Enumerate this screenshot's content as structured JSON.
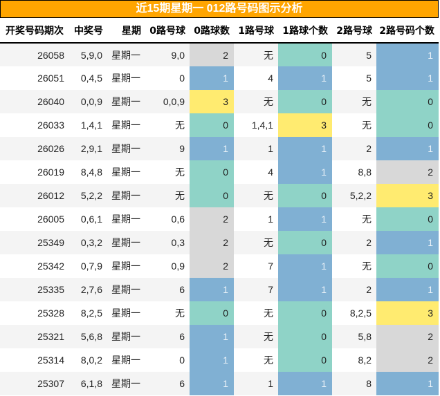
{
  "title": "近15期星期一 012路号码图示分析",
  "columns": [
    "开奖号码期次",
    "中奖号",
    "星期",
    "0路号球",
    "0路球数",
    "1路号球",
    "1路球个数",
    "2路号球",
    "2路号码个数"
  ],
  "palette": {
    "title_bg": "#ffa500",
    "count_0": "#8fd3c7",
    "count_1": "#80b0d3",
    "count_2": "#d8d8d8",
    "count_3": "#ffeb70"
  },
  "rows": [
    {
      "issue": "26058",
      "numbers": "5,9,0",
      "weekday": "星期一",
      "r0_balls": "9,0",
      "r0_count": "2",
      "r1_balls": "无",
      "r1_count": "0",
      "r2_balls": "5",
      "r2_count": "1"
    },
    {
      "issue": "26051",
      "numbers": "0,4,5",
      "weekday": "星期一",
      "r0_balls": "0",
      "r0_count": "1",
      "r1_balls": "4",
      "r1_count": "1",
      "r2_balls": "5",
      "r2_count": "1"
    },
    {
      "issue": "26040",
      "numbers": "0,0,9",
      "weekday": "星期一",
      "r0_balls": "0,0,9",
      "r0_count": "3",
      "r1_balls": "无",
      "r1_count": "0",
      "r2_balls": "无",
      "r2_count": "0"
    },
    {
      "issue": "26033",
      "numbers": "1,4,1",
      "weekday": "星期一",
      "r0_balls": "无",
      "r0_count": "0",
      "r1_balls": "1,4,1",
      "r1_count": "3",
      "r2_balls": "无",
      "r2_count": "0"
    },
    {
      "issue": "26026",
      "numbers": "2,9,1",
      "weekday": "星期一",
      "r0_balls": "9",
      "r0_count": "1",
      "r1_balls": "1",
      "r1_count": "1",
      "r2_balls": "2",
      "r2_count": "1"
    },
    {
      "issue": "26019",
      "numbers": "8,4,8",
      "weekday": "星期一",
      "r0_balls": "无",
      "r0_count": "0",
      "r1_balls": "4",
      "r1_count": "1",
      "r2_balls": "8,8",
      "r2_count": "2"
    },
    {
      "issue": "26012",
      "numbers": "5,2,2",
      "weekday": "星期一",
      "r0_balls": "无",
      "r0_count": "0",
      "r1_balls": "无",
      "r1_count": "0",
      "r2_balls": "5,2,2",
      "r2_count": "3"
    },
    {
      "issue": "26005",
      "numbers": "0,6,1",
      "weekday": "星期一",
      "r0_balls": "0,6",
      "r0_count": "2",
      "r1_balls": "1",
      "r1_count": "1",
      "r2_balls": "无",
      "r2_count": "0"
    },
    {
      "issue": "25349",
      "numbers": "0,3,2",
      "weekday": "星期一",
      "r0_balls": "0,3",
      "r0_count": "2",
      "r1_balls": "无",
      "r1_count": "0",
      "r2_balls": "2",
      "r2_count": "1"
    },
    {
      "issue": "25342",
      "numbers": "0,7,9",
      "weekday": "星期一",
      "r0_balls": "0,9",
      "r0_count": "2",
      "r1_balls": "7",
      "r1_count": "1",
      "r2_balls": "无",
      "r2_count": "0"
    },
    {
      "issue": "25335",
      "numbers": "2,7,6",
      "weekday": "星期一",
      "r0_balls": "6",
      "r0_count": "1",
      "r1_balls": "7",
      "r1_count": "1",
      "r2_balls": "2",
      "r2_count": "1"
    },
    {
      "issue": "25328",
      "numbers": "8,2,5",
      "weekday": "星期一",
      "r0_balls": "无",
      "r0_count": "0",
      "r1_balls": "无",
      "r1_count": "0",
      "r2_balls": "8,2,5",
      "r2_count": "3"
    },
    {
      "issue": "25321",
      "numbers": "5,6,8",
      "weekday": "星期一",
      "r0_balls": "6",
      "r0_count": "1",
      "r1_balls": "无",
      "r1_count": "0",
      "r2_balls": "5,8",
      "r2_count": "2"
    },
    {
      "issue": "25314",
      "numbers": "8,0,2",
      "weekday": "星期一",
      "r0_balls": "0",
      "r0_count": "1",
      "r1_balls": "无",
      "r1_count": "0",
      "r2_balls": "8,2",
      "r2_count": "2"
    },
    {
      "issue": "25307",
      "numbers": "6,1,8",
      "weekday": "星期一",
      "r0_balls": "6",
      "r0_count": "1",
      "r1_balls": "1",
      "r1_count": "1",
      "r2_balls": "8",
      "r2_count": "1"
    }
  ]
}
